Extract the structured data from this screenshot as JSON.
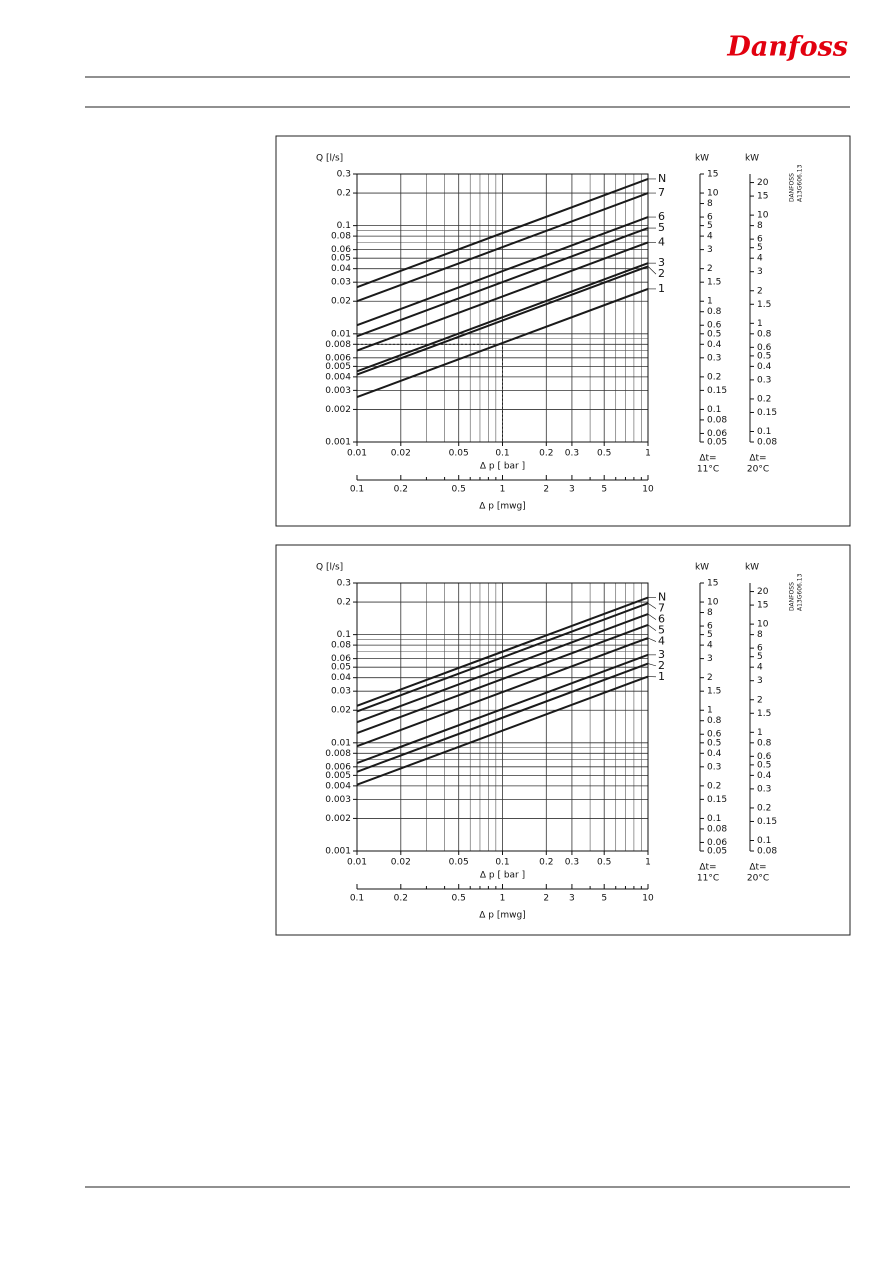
{
  "header": {
    "logo": "Danfoss"
  },
  "chart_data": [
    {
      "type": "line",
      "y_title": "Q [l/s]",
      "x_title": "Δ p [ bar ]",
      "x2_title": "Δ p [mwg]",
      "log_x": true,
      "log_y": true,
      "grid": true,
      "x": [
        0.01,
        1
      ],
      "series": [
        {
          "name": "N",
          "color": "#1a1a1a",
          "values": [
            0.027,
            0.27
          ]
        },
        {
          "name": "7",
          "color": "#1a1a1a",
          "values": [
            0.02,
            0.2
          ]
        },
        {
          "name": "6",
          "color": "#1a1a1a",
          "values": [
            0.012,
            0.12
          ]
        },
        {
          "name": "5",
          "color": "#1a1a1a",
          "values": [
            0.0095,
            0.095
          ]
        },
        {
          "name": "4",
          "color": "#1a1a1a",
          "values": [
            0.007,
            0.07
          ]
        },
        {
          "name": "3",
          "color": "#1a1a1a",
          "values": [
            0.0045,
            0.045
          ]
        },
        {
          "name": "2",
          "color": "#1a1a1a",
          "values": [
            0.0042,
            0.042
          ]
        },
        {
          "name": "1",
          "color": "#1a1a1a",
          "values": [
            0.0026,
            0.026
          ]
        }
      ],
      "reference": {
        "x": 0.1,
        "y": 0.008
      },
      "xlim": [
        0.01,
        1
      ],
      "xticks": [
        0.01,
        0.02,
        0.05,
        0.1,
        0.2,
        0.3,
        0.5,
        1
      ],
      "xgrid": [
        0.03,
        0.04,
        0.06,
        0.07,
        0.08,
        0.09,
        0.4,
        0.6,
        0.7,
        0.8,
        0.9
      ],
      "ylim": [
        0.001,
        0.3
      ],
      "yticks": [
        0.001,
        0.002,
        0.003,
        0.004,
        0.005,
        0.006,
        0.008,
        0.01,
        0.02,
        0.03,
        0.04,
        0.05,
        0.06,
        0.08,
        0.1,
        0.2,
        0.3
      ],
      "ygrid": [
        0.007,
        0.009,
        0.07,
        0.09
      ],
      "x2lim": [
        0.1,
        10
      ],
      "x2ticks": [
        0.1,
        0.2,
        0.5,
        1,
        2,
        3,
        5,
        10
      ],
      "x2minor": [
        0.3,
        0.4,
        0.6,
        0.7,
        0.8,
        0.9,
        4,
        6,
        7,
        8,
        9
      ],
      "kw_axes": [
        {
          "unit": "kW",
          "lim": [
            0.05,
            15
          ],
          "ticks": [
            0.05,
            0.06,
            0.08,
            0.1,
            0.15,
            0.2,
            0.3,
            0.4,
            0.5,
            0.6,
            0.8,
            1,
            1.5,
            2,
            3,
            4,
            5,
            6,
            8,
            10,
            15
          ],
          "note": [
            "Δt=",
            "11°C"
          ]
        },
        {
          "unit": "kW",
          "lim": [
            0.08,
            24
          ],
          "ticks": [
            0.08,
            0.1,
            0.15,
            0.2,
            0.3,
            0.4,
            0.5,
            0.6,
            0.8,
            1,
            1.5,
            2,
            3,
            4,
            5,
            6,
            8,
            10,
            15,
            20
          ],
          "note": [
            "Δt=",
            "20°C"
          ]
        }
      ],
      "code": [
        "DANFOSS",
        "A13G606.13"
      ]
    },
    {
      "type": "line",
      "y_title": "Q [l/s]",
      "x_title": "Δ p [ bar ]",
      "x2_title": "Δ p [mwg]",
      "log_x": true,
      "log_y": true,
      "grid": true,
      "x": [
        0.01,
        1
      ],
      "series": [
        {
          "name": "N",
          "color": "#1a1a1a",
          "values": [
            0.022,
            0.22
          ]
        },
        {
          "name": "7",
          "color": "#1a1a1a",
          "values": [
            0.0195,
            0.195
          ]
        },
        {
          "name": "6",
          "color": "#1a1a1a",
          "values": [
            0.0155,
            0.155
          ]
        },
        {
          "name": "5",
          "color": "#1a1a1a",
          "values": [
            0.0123,
            0.123
          ]
        },
        {
          "name": "4",
          "color": "#1a1a1a",
          "values": [
            0.0093,
            0.093
          ]
        },
        {
          "name": "3",
          "color": "#1a1a1a",
          "values": [
            0.0065,
            0.065
          ]
        },
        {
          "name": "2",
          "color": "#1a1a1a",
          "values": [
            0.0054,
            0.054
          ]
        },
        {
          "name": "1",
          "color": "#1a1a1a",
          "values": [
            0.0041,
            0.041
          ]
        }
      ],
      "xlim": [
        0.01,
        1
      ],
      "xticks": [
        0.01,
        0.02,
        0.05,
        0.1,
        0.2,
        0.3,
        0.5,
        1
      ],
      "xgrid": [
        0.03,
        0.04,
        0.06,
        0.07,
        0.08,
        0.09,
        0.4,
        0.6,
        0.7,
        0.8,
        0.9
      ],
      "ylim": [
        0.001,
        0.3
      ],
      "yticks": [
        0.001,
        0.002,
        0.003,
        0.004,
        0.005,
        0.006,
        0.008,
        0.01,
        0.02,
        0.03,
        0.04,
        0.05,
        0.06,
        0.08,
        0.1,
        0.2,
        0.3
      ],
      "ygrid": [
        0.007,
        0.009,
        0.07,
        0.09
      ],
      "x2lim": [
        0.1,
        10
      ],
      "x2ticks": [
        0.1,
        0.2,
        0.5,
        1,
        2,
        3,
        5,
        10
      ],
      "x2minor": [
        0.3,
        0.4,
        0.6,
        0.7,
        0.8,
        0.9,
        4,
        6,
        7,
        8,
        9
      ],
      "kw_axes": [
        {
          "unit": "kW",
          "lim": [
            0.05,
            15
          ],
          "ticks": [
            0.05,
            0.06,
            0.08,
            0.1,
            0.15,
            0.2,
            0.3,
            0.4,
            0.5,
            0.6,
            0.8,
            1,
            1.5,
            2,
            3,
            4,
            5,
            6,
            8,
            10,
            15
          ],
          "note": [
            "Δt=",
            "11°C"
          ]
        },
        {
          "unit": "kW",
          "lim": [
            0.08,
            24
          ],
          "ticks": [
            0.08,
            0.1,
            0.15,
            0.2,
            0.3,
            0.4,
            0.5,
            0.6,
            0.8,
            1,
            1.5,
            2,
            3,
            4,
            5,
            6,
            8,
            10,
            15,
            20
          ],
          "note": [
            "Δt=",
            "20°C"
          ]
        }
      ],
      "code": [
        "DANFOSS",
        "A13G606.13"
      ]
    }
  ]
}
